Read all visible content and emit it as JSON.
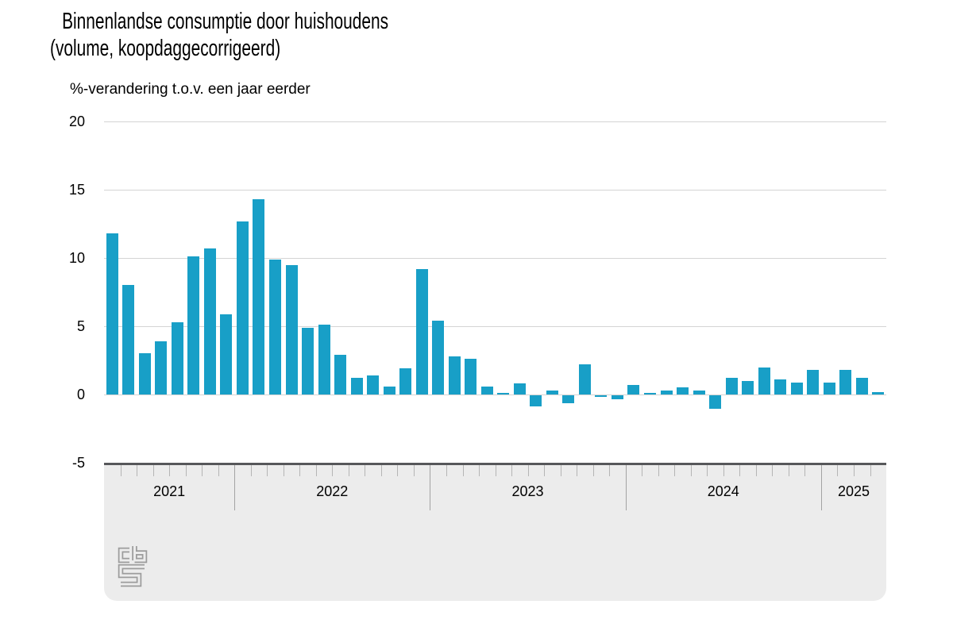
{
  "header": {
    "title": "Binnenlandse consumptie door huishoudens (volume, koopdaggecorrigeerd)",
    "subtitle": "%-verandering t.o.v. een jaar eerder"
  },
  "chart_data": {
    "type": "bar",
    "title": "Binnenlandse consumptie door huishoudens (volume, koopdaggecorrigeerd)",
    "subtitle": "%-verandering t.o.v. een jaar eerder",
    "ylabel": "%-verandering t.o.v. een jaar eerder",
    "ylim": [
      -5,
      20
    ],
    "yticks": [
      20,
      15,
      10,
      5,
      0,
      -5
    ],
    "grid": true,
    "legend": "none",
    "bar_color": "#189fc7",
    "years": [
      {
        "label": "2021",
        "months": 8
      },
      {
        "label": "2022",
        "months": 12
      },
      {
        "label": "2023",
        "months": 12
      },
      {
        "label": "2024",
        "months": 12
      },
      {
        "label": "2025",
        "months": 4
      }
    ],
    "x": [
      "2021-05",
      "2021-06",
      "2021-07",
      "2021-08",
      "2021-09",
      "2021-10",
      "2021-11",
      "2021-12",
      "2022-01",
      "2022-02",
      "2022-03",
      "2022-04",
      "2022-05",
      "2022-06",
      "2022-07",
      "2022-08",
      "2022-09",
      "2022-10",
      "2022-11",
      "2022-12",
      "2023-01",
      "2023-02",
      "2023-03",
      "2023-04",
      "2023-05",
      "2023-06",
      "2023-07",
      "2023-08",
      "2023-09",
      "2023-10",
      "2023-11",
      "2023-12",
      "2024-01",
      "2024-02",
      "2024-03",
      "2024-04",
      "2024-05",
      "2024-06",
      "2024-07",
      "2024-08",
      "2024-09",
      "2024-10",
      "2024-11",
      "2024-12",
      "2025-01",
      "2025-02",
      "2025-03",
      "2025-04"
    ],
    "values": [
      11.8,
      8.0,
      3.0,
      3.9,
      5.3,
      10.1,
      10.7,
      5.9,
      12.7,
      14.3,
      9.9,
      9.5,
      4.9,
      5.1,
      2.9,
      1.2,
      1.4,
      0.6,
      1.9,
      9.2,
      5.4,
      2.8,
      2.6,
      0.6,
      0.1,
      0.8,
      -0.8,
      0.3,
      -0.6,
      2.2,
      -0.1,
      -0.3,
      0.7,
      0.1,
      0.3,
      0.5,
      0.3,
      -1.0,
      1.2,
      1.0,
      2.0,
      1.1,
      0.9,
      1.8,
      0.9,
      1.8,
      1.2,
      0.2
    ]
  },
  "footer": {
    "logo_icon": "cbs-logo"
  }
}
